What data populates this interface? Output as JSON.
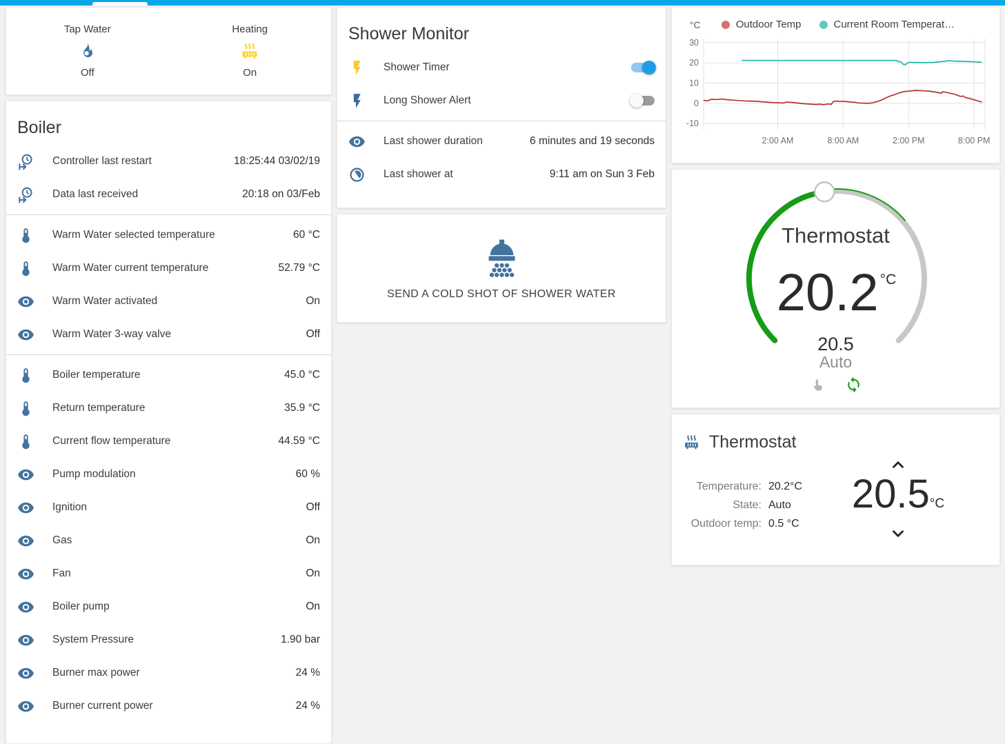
{
  "topbar": {
    "accent_color": "#0aa6e9"
  },
  "status_card": {
    "items": [
      {
        "name": "Tap Water",
        "state": "Off",
        "icon": "fire-icon",
        "icon_color": "#44739e"
      },
      {
        "name": "Heating",
        "state": "On",
        "icon": "radiator-icon",
        "icon_color": "#fdd330"
      }
    ]
  },
  "boiler_card": {
    "title": "Boiler",
    "rows": [
      {
        "icon": "clock-start-icon",
        "icon_color": "#44739e",
        "label": "Controller last restart",
        "value": "18:25:44 03/02/19"
      },
      {
        "icon": "clock-start-icon",
        "icon_color": "#44739e",
        "label": "Data last received",
        "value": "20:18 on 03/Feb",
        "divider_after": true
      },
      {
        "icon": "thermometer-icon",
        "icon_color": "#44739e",
        "label": "Warm Water selected temperature",
        "value": "60 °C"
      },
      {
        "icon": "thermometer-icon",
        "icon_color": "#44739e",
        "label": "Warm Water current temperature",
        "value": "52.79 °C"
      },
      {
        "icon": "eye-icon",
        "icon_color": "#44739e",
        "label": "Warm Water activated",
        "value": "On"
      },
      {
        "icon": "eye-icon",
        "icon_color": "#44739e",
        "label": "Warm Water 3-way valve",
        "value": "Off",
        "divider_after": true
      },
      {
        "icon": "thermometer-icon",
        "icon_color": "#44739e",
        "label": "Boiler temperature",
        "value": "45.0 °C"
      },
      {
        "icon": "thermometer-icon",
        "icon_color": "#44739e",
        "label": "Return temperature",
        "value": "35.9 °C"
      },
      {
        "icon": "thermometer-icon",
        "icon_color": "#44739e",
        "label": "Current flow temperature",
        "value": "44.59 °C"
      },
      {
        "icon": "eye-icon",
        "icon_color": "#44739e",
        "label": "Pump modulation",
        "value": "60 %"
      },
      {
        "icon": "eye-icon",
        "icon_color": "#44739e",
        "label": "Ignition",
        "value": "Off"
      },
      {
        "icon": "eye-icon",
        "icon_color": "#44739e",
        "label": "Gas",
        "value": "On"
      },
      {
        "icon": "eye-icon",
        "icon_color": "#44739e",
        "label": "Fan",
        "value": "On"
      },
      {
        "icon": "eye-icon",
        "icon_color": "#44739e",
        "label": "Boiler pump",
        "value": "On"
      },
      {
        "icon": "eye-icon",
        "icon_color": "#44739e",
        "label": "System Pressure",
        "value": "1.90 bar"
      },
      {
        "icon": "eye-icon",
        "icon_color": "#44739e",
        "label": "Burner max power",
        "value": "24 %"
      },
      {
        "icon": "eye-icon",
        "icon_color": "#44739e",
        "label": "Burner current power",
        "value": "24 %"
      }
    ]
  },
  "shower_monitor_card": {
    "title": "Shower Monitor",
    "toggle_rows": [
      {
        "icon": "flash-icon",
        "icon_color": "#fdc92b",
        "label": "Shower Timer",
        "state": "on"
      },
      {
        "icon": "flash-icon",
        "icon_color": "#41689f",
        "label": "Long Shower Alert",
        "state": "off"
      }
    ],
    "sensor_rows": [
      {
        "icon": "eye-icon",
        "icon_color": "#44739e",
        "label": "Last shower duration",
        "value": "6 minutes and 19 seconds"
      },
      {
        "icon": "timelapse-icon",
        "icon_color": "#44739e",
        "label": "Last shower at",
        "value": "9:11 am on Sun 3 Feb"
      }
    ]
  },
  "shower_button_card": {
    "label": "SEND A COLD SHOT OF SHOWER WATER",
    "icon": "shower-head-icon",
    "icon_color": "#44739e"
  },
  "chart_data": {
    "type": "line",
    "title": "",
    "xlabel": "",
    "ylabel": "°C",
    "xlim": [
      -4.8,
      21.0
    ],
    "ylim": [
      -13,
      32
    ],
    "grid": true,
    "legend_position": "top",
    "yticks": [
      30,
      20,
      10,
      0,
      -10
    ],
    "xticks": [
      {
        "t": 2,
        "label": "2:00 AM"
      },
      {
        "t": 8,
        "label": "8:00 AM"
      },
      {
        "t": 14,
        "label": "2:00 PM"
      },
      {
        "t": 20,
        "label": "8:00 PM"
      }
    ],
    "series": [
      {
        "name": "Outdoor Temp",
        "color": "#b23430",
        "legend_color": "#d66f6f",
        "points": [
          [
            -4.8,
            1.5
          ],
          [
            -4.4,
            1.2
          ],
          [
            -4.1,
            2.0
          ],
          [
            -3.6,
            1.9
          ],
          [
            -3.1,
            2.1
          ],
          [
            -2.6,
            1.8
          ],
          [
            -2.1,
            1.6
          ],
          [
            -1.6,
            1.4
          ],
          [
            -1.1,
            1.2
          ],
          [
            -0.6,
            1.1
          ],
          [
            0,
            1.0
          ],
          [
            0.5,
            0.8
          ],
          [
            1,
            0.6
          ],
          [
            1.5,
            0.4
          ],
          [
            2,
            0.3
          ],
          [
            2.5,
            0.2
          ],
          [
            2.8,
            0.6
          ],
          [
            3.2,
            0.5
          ],
          [
            3.6,
            0.3
          ],
          [
            4,
            0
          ],
          [
            4.5,
            -0.2
          ],
          [
            5,
            -0.4
          ],
          [
            5.5,
            -0.6
          ],
          [
            5.8,
            -0.4
          ],
          [
            6.2,
            -0.7
          ],
          [
            6.6,
            -0.3
          ],
          [
            6.9,
            -0.5
          ],
          [
            7.1,
            0.9
          ],
          [
            7.4,
            1.1
          ],
          [
            7.8,
            0.9
          ],
          [
            8.1,
            1.0
          ],
          [
            8.4,
            0.8
          ],
          [
            8.8,
            0.6
          ],
          [
            9.1,
            0.5
          ],
          [
            9.4,
            0.2
          ],
          [
            9.8,
            0.1
          ],
          [
            10.2,
            0
          ],
          [
            10.6,
            0.2
          ],
          [
            11,
            0.7
          ],
          [
            11.4,
            1.4
          ],
          [
            11.7,
            2.1
          ],
          [
            12,
            2.9
          ],
          [
            12.3,
            3.6
          ],
          [
            12.7,
            4.3
          ],
          [
            13,
            4.9
          ],
          [
            13.3,
            5.4
          ],
          [
            13.6,
            5.9
          ],
          [
            14,
            6.0
          ],
          [
            14.3,
            6.2
          ],
          [
            14.6,
            6.4
          ],
          [
            15,
            6.3
          ],
          [
            15.4,
            6.2
          ],
          [
            15.8,
            6.1
          ],
          [
            16.2,
            5.8
          ],
          [
            16.6,
            5.4
          ],
          [
            17,
            5.0
          ],
          [
            17.1,
            5.7
          ],
          [
            17.4,
            5.5
          ],
          [
            17.8,
            5.0
          ],
          [
            18.2,
            4.5
          ],
          [
            18.5,
            3.9
          ],
          [
            18.8,
            3.4
          ],
          [
            19,
            3.6
          ],
          [
            19.2,
            2.9
          ],
          [
            19.5,
            2.5
          ],
          [
            19.8,
            2.1
          ],
          [
            20.1,
            1.6
          ],
          [
            20.4,
            1.1
          ],
          [
            20.7,
            0.6
          ]
        ]
      },
      {
        "name": "Current Room Temperat…",
        "color": "#1db6ae",
        "legend_color": "#62c8c2",
        "points": [
          [
            -1.3,
            21.2
          ],
          [
            5,
            21.2
          ],
          [
            10,
            21.2
          ],
          [
            12.9,
            21.2
          ],
          [
            13.1,
            20.6
          ],
          [
            13.3,
            20.5
          ],
          [
            13.5,
            19.3
          ],
          [
            13.7,
            19.1
          ],
          [
            13.9,
            19.9
          ],
          [
            14.1,
            20.3
          ],
          [
            14.5,
            20.2
          ],
          [
            15,
            20.2
          ],
          [
            15.4,
            20.1
          ],
          [
            15.8,
            20.2
          ],
          [
            16.2,
            20.2
          ],
          [
            16.6,
            20.4
          ],
          [
            17,
            20.6
          ],
          [
            17.4,
            20.9
          ],
          [
            17.7,
            21.1
          ],
          [
            18,
            21.0
          ],
          [
            18.4,
            20.8
          ],
          [
            18.8,
            20.8
          ],
          [
            19.2,
            20.7
          ],
          [
            19.6,
            20.6
          ],
          [
            20,
            20.5
          ],
          [
            20.4,
            20.4
          ],
          [
            20.7,
            20.3
          ]
        ]
      }
    ]
  },
  "thermostat_dial_card": {
    "title": "Thermostat",
    "current": "20.2",
    "unit": "°C",
    "target": "20.5",
    "mode": "Auto",
    "arc_green": "#169c16",
    "arc_gray": "#c8c8c8"
  },
  "thermostat_info_card": {
    "title": "Thermostat",
    "rows": [
      {
        "label": "Temperature:",
        "value": "20.2°C"
      },
      {
        "label": "State:",
        "value": "Auto"
      },
      {
        "label": "Outdoor temp:",
        "value": "0.5 °C"
      }
    ],
    "setpoint": "20.5",
    "unit": "°C"
  }
}
